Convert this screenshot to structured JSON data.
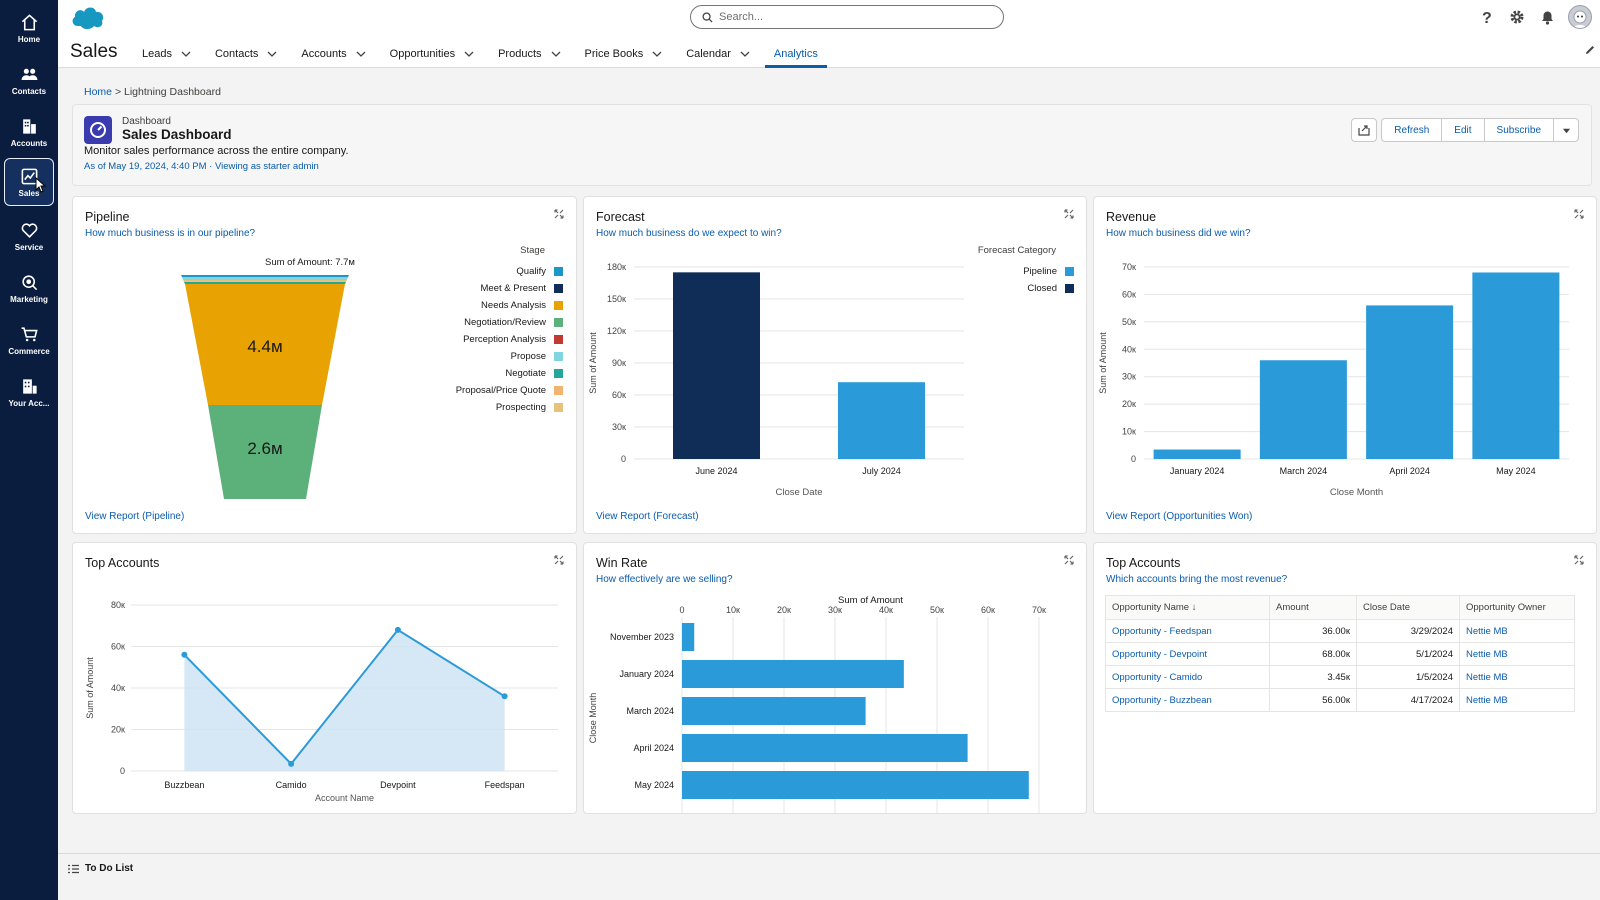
{
  "rail": [
    {
      "label": "Home",
      "icon": "home-icon"
    },
    {
      "label": "Contacts",
      "icon": "contacts-icon"
    },
    {
      "label": "Accounts",
      "icon": "accounts-icon"
    },
    {
      "label": "Sales",
      "icon": "sales-icon",
      "active": true
    },
    {
      "label": "Service",
      "icon": "service-icon"
    },
    {
      "label": "Marketing",
      "icon": "marketing-icon"
    },
    {
      "label": "Commerce",
      "icon": "commerce-icon"
    },
    {
      "label": "Your Acc...",
      "icon": "your-account-icon"
    }
  ],
  "header": {
    "search_placeholder": "Search...",
    "app_name": "Sales",
    "nav": [
      {
        "label": "Leads",
        "dropdown": true
      },
      {
        "label": "Contacts",
        "dropdown": true
      },
      {
        "label": "Accounts",
        "dropdown": true
      },
      {
        "label": "Opportunities",
        "dropdown": true
      },
      {
        "label": "Products",
        "dropdown": true
      },
      {
        "label": "Price Books",
        "dropdown": true
      },
      {
        "label": "Calendar",
        "dropdown": true
      },
      {
        "label": "Analytics",
        "dropdown": false,
        "active": true
      }
    ]
  },
  "breadcrumb": {
    "home": "Home",
    "separator": ">",
    "current": "Lightning Dashboard"
  },
  "dashboard": {
    "kind": "Dashboard",
    "title": "Sales Dashboard",
    "description": "Monitor sales performance across the entire company.",
    "meta": "As of May 19, 2024, 4:40 PM · Viewing as starter admin",
    "actions": {
      "refresh": "Refresh",
      "edit": "Edit",
      "subscribe": "Subscribe"
    }
  },
  "colors": {
    "accent": "#0b5cab",
    "rail": "#0b1d3f",
    "bar_blue": "#2a9ad8",
    "bar_navy": "#0f2d57",
    "funnel_orange": "#e8a202",
    "funnel_green": "#5cb07a"
  },
  "widgets": {
    "pipeline": {
      "title": "Pipeline",
      "subtitle": "How much business is in our pipeline?",
      "link": "View Report (Pipeline)",
      "sum_label": "Sum of Amount: 7.7м",
      "legend_title": "Stage",
      "legend": [
        {
          "label": "Qualify",
          "color": "#1b96c8"
        },
        {
          "label": "Meet & Present",
          "color": "#0f2d57"
        },
        {
          "label": "Needs Analysis",
          "color": "#e8a202"
        },
        {
          "label": "Negotiation/Review",
          "color": "#5cb07a"
        },
        {
          "label": "Perception Analysis",
          "color": "#c23934"
        },
        {
          "label": "Propose",
          "color": "#7fd6e0"
        },
        {
          "label": "Negotiate",
          "color": "#26a69a"
        },
        {
          "label": "Proposal/Price Quote",
          "color": "#f1b470"
        },
        {
          "label": "Prospecting",
          "color": "#e6c27a"
        }
      ],
      "segment_labels": {
        "needs_analysis": "4.4м",
        "negotiation_review": "2.6м"
      }
    },
    "forecast": {
      "title": "Forecast",
      "subtitle": "How much business do we expect to win?",
      "link": "View Report (Forecast)",
      "legend_title": "Forecast Category",
      "legend": [
        {
          "label": "Pipeline",
          "color": "#2a9ad8"
        },
        {
          "label": "Closed",
          "color": "#0f2d57"
        }
      ]
    },
    "revenue": {
      "title": "Revenue",
      "subtitle": "How much business did we win?",
      "link": "View Report (Opportunities Won)"
    },
    "top_accounts_chart": {
      "title": "Top Accounts"
    },
    "win_rate": {
      "title": "Win Rate",
      "subtitle": "How effectively are we selling?"
    },
    "top_accounts_table": {
      "title": "Top Accounts",
      "subtitle": "Which accounts bring the most revenue?",
      "columns": [
        "Opportunity Name ↓",
        "Amount",
        "Close Date",
        "Opportunity Owner"
      ],
      "rows": [
        {
          "name": "Opportunity - Feedspan",
          "amount": "36.00к",
          "close": "3/29/2024",
          "owner": "Nettie MB"
        },
        {
          "name": "Opportunity - Devpoint",
          "amount": "68.00к",
          "close": "5/1/2024",
          "owner": "Nettie MB"
        },
        {
          "name": "Opportunity - Camido",
          "amount": "3.45к",
          "close": "1/5/2024",
          "owner": "Nettie MB"
        },
        {
          "name": "Opportunity - Buzzbean",
          "amount": "56.00к",
          "close": "4/17/2024",
          "owner": "Nettie MB"
        }
      ]
    }
  },
  "chart_data": [
    {
      "type": "funnel",
      "title": "Pipeline",
      "total_label": "Sum of Amount: 7.7м",
      "categories": [
        "Qualify",
        "Meet & Present",
        "Needs Analysis",
        "Negotiation/Review"
      ],
      "values": [
        0.2,
        0.1,
        4.4,
        2.6
      ],
      "unit": "M"
    },
    {
      "type": "bar",
      "title": "Forecast",
      "categories": [
        "June 2024",
        "July 2024"
      ],
      "series": [
        {
          "name": "Closed",
          "values": [
            175000,
            0
          ],
          "color": "#0f2d57"
        },
        {
          "name": "Pipeline",
          "values": [
            0,
            72000
          ],
          "color": "#2a9ad8"
        }
      ],
      "xlabel": "Close Date",
      "ylabel": "Sum of Amount",
      "ylim": [
        0,
        180000
      ],
      "yticks": [
        0,
        30000,
        60000,
        90000,
        120000,
        150000,
        180000
      ],
      "ytick_labels": [
        "0",
        "30к",
        "60к",
        "90к",
        "120к",
        "150к",
        "180к"
      ]
    },
    {
      "type": "bar",
      "title": "Revenue",
      "categories": [
        "January 2024",
        "March 2024",
        "April 2024",
        "May 2024"
      ],
      "values": [
        3450,
        36000,
        56000,
        68000
      ],
      "xlabel": "Close Month",
      "ylabel": "Sum of Amount",
      "ylim": [
        0,
        70000
      ],
      "yticks": [
        0,
        10000,
        20000,
        30000,
        40000,
        50000,
        60000,
        70000
      ],
      "ytick_labels": [
        "0",
        "10к",
        "20к",
        "30к",
        "40к",
        "50к",
        "60к",
        "70к"
      ]
    },
    {
      "type": "area",
      "title": "Top Accounts",
      "categories": [
        "Buzzbean",
        "Camido",
        "Devpoint",
        "Feedspan"
      ],
      "values": [
        56000,
        3450,
        68000,
        36000
      ],
      "xlabel": "Account Name",
      "ylabel": "Sum of Amount",
      "ylim": [
        0,
        80000
      ],
      "yticks": [
        0,
        20000,
        40000,
        60000,
        80000
      ],
      "ytick_labels": [
        "0",
        "20к",
        "40к",
        "60к",
        "80к"
      ]
    },
    {
      "type": "bar",
      "orientation": "horizontal",
      "title": "Win Rate",
      "categories": [
        "November 2023",
        "January 2024",
        "March 2024",
        "April 2024",
        "May 2024"
      ],
      "values": [
        2400,
        43500,
        36000,
        56000,
        68000
      ],
      "xlabel": "Sum of Amount",
      "ylabel": "Close Month",
      "xlim": [
        0,
        70000
      ],
      "xticks": [
        0,
        10000,
        20000,
        30000,
        40000,
        50000,
        60000,
        70000
      ],
      "xtick_labels": [
        "0",
        "10к",
        "20к",
        "30к",
        "40к",
        "50к",
        "60к",
        "70к"
      ]
    }
  ],
  "bottom": {
    "todo_label": "To Do List"
  }
}
